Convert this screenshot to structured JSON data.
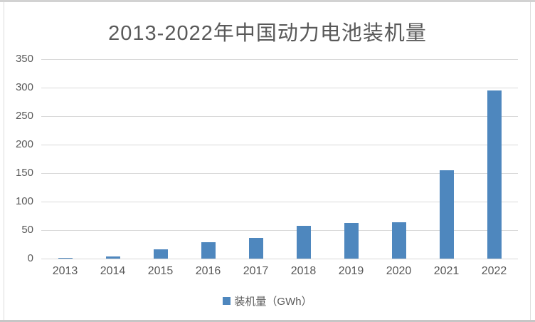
{
  "chart_data": {
    "type": "bar",
    "title": "2013-2022年中国动力电池装机量",
    "categories": [
      "2013",
      "2014",
      "2015",
      "2016",
      "2017",
      "2018",
      "2019",
      "2020",
      "2021",
      "2022"
    ],
    "values": [
      0.8,
      3.7,
      15.7,
      28.2,
      36.2,
      56.9,
      62.2,
      63.6,
      154.5,
      294.6
    ],
    "series_name": "装机量（GWh）",
    "xlabel": "",
    "ylabel": "",
    "ylim": [
      0,
      350
    ],
    "yticks": [
      0,
      50,
      100,
      150,
      200,
      250,
      300,
      350
    ],
    "grid": true,
    "legend_position": "bottom",
    "bar_color": "#4e87be",
    "grid_color": "#d9d9d9",
    "axis_color": "#d9d9d9",
    "text_color": "#595959",
    "background_color": "#ffffff"
  },
  "legend": {
    "label": "装机量（GWh）"
  }
}
